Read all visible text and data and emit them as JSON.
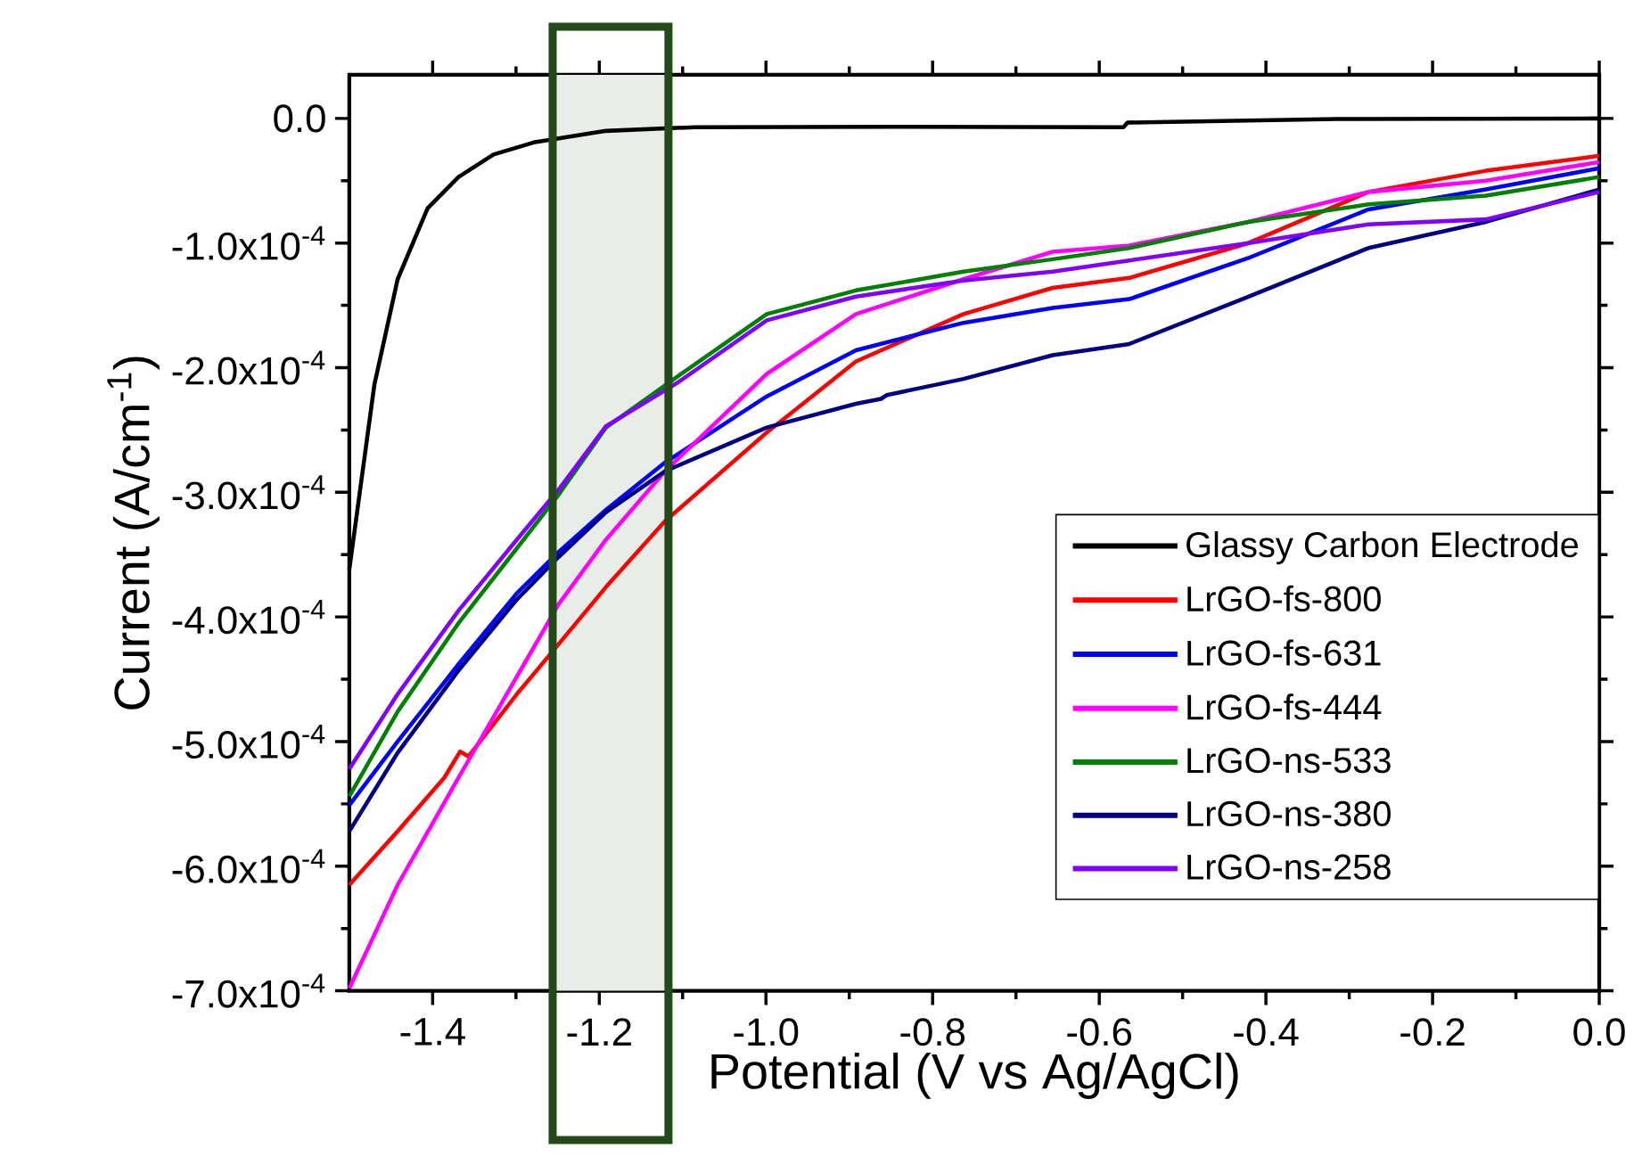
{
  "chart_data": {
    "type": "line",
    "xlabel": "Potential (V vs Ag/AgCl)",
    "ylabel": "Current (A/cm$^{-1}$)",
    "xlim": [
      -1.5,
      0
    ],
    "ylim": [
      -0.0007,
      3.5e-05
    ],
    "xticks": [
      {
        "value": -1.4,
        "label": "-1.4"
      },
      {
        "value": -1.2,
        "label": "-1.2"
      },
      {
        "value": -1.0,
        "label": "-1.0"
      },
      {
        "value": -0.8,
        "label": "-0.8"
      },
      {
        "value": -0.6,
        "label": "-0.6"
      },
      {
        "value": -0.4,
        "label": "-0.4"
      },
      {
        "value": -0.2,
        "label": "-0.2"
      },
      {
        "value": 0,
        "label": "0.0"
      }
    ],
    "yticks": [
      {
        "value": 0,
        "label": "0.0"
      },
      {
        "value": -0.0001,
        "label": "-1.0x10$^{-4}$"
      },
      {
        "value": -0.0002,
        "label": "-2.0x10$^{-4}$"
      },
      {
        "value": -0.0003,
        "label": "-3.0x10$^{-4}$"
      },
      {
        "value": -0.0004,
        "label": "-4.0x10$^{-4}$"
      },
      {
        "value": -0.0005,
        "label": "-5.0x10$^{-4}$"
      },
      {
        "value": -0.0006,
        "label": "-6.0x10$^{-4}$"
      },
      {
        "value": -0.0007,
        "label": "-7.0x10$^{-4}$"
      }
    ],
    "legend": "bottom right",
    "line_style": "solid",
    "bands": [
      {
        "axis": "x",
        "from": -1.256,
        "to": -1.117,
        "color": "#e9ede8"
      }
    ],
    "series": [
      {
        "name": "Glassy Carbon Electrode",
        "color": "#000000",
        "x": [
          -1.5,
          -1.47,
          -1.442,
          -1.406,
          -1.369,
          -1.327,
          -1.277,
          -1.192,
          -1.085,
          -0.849,
          -0.571,
          -0.566,
          -0.314,
          0
        ],
        "values": [
          -0.000362,
          -0.000214,
          -0.000129,
          -7.2e-05,
          -4.7e-05,
          -2.9e-05,
          -1.9e-05,
          -1e-05,
          -7e-06,
          -6.7e-06,
          -7e-06,
          -3.3e-06,
          -5e-07,
          0
        ]
      },
      {
        "name": "LrGO-fs-800",
        "color": "#ff0000",
        "x": [
          -1.5,
          -1.442,
          -1.386,
          -1.367,
          -1.357,
          -1.299,
          -1.249,
          -1.192,
          -1.121,
          -0.999,
          -0.892,
          -0.763,
          -0.656,
          -0.564,
          -0.421,
          -0.277,
          -0.136,
          0
        ],
        "values": [
          -0.000615,
          -0.000572,
          -0.000529,
          -0.000508,
          -0.000512,
          -0.000462,
          -0.000422,
          -0.000376,
          -0.000323,
          -0.000252,
          -0.000195,
          -0.000157,
          -0.000136,
          -0.000128,
          -0.0001,
          -5.9e-05,
          -4.2e-05,
          -3e-05
        ]
      },
      {
        "name": "LrGO-fs-631",
        "color": "#0000ff",
        "x": [
          -1.5,
          -1.442,
          -1.369,
          -1.299,
          -1.249,
          -1.192,
          -1.121,
          -0.999,
          -0.892,
          -0.763,
          -0.656,
          -0.564,
          -0.421,
          -0.277,
          -0.136,
          0
        ],
        "values": [
          -0.000551,
          -0.0005,
          -0.000438,
          -0.000381,
          -0.000348,
          -0.000314,
          -0.000276,
          -0.000223,
          -0.000186,
          -0.000164,
          -0.000152,
          -0.000145,
          -0.000112,
          -7.3e-05,
          -5.7e-05,
          -4e-05
        ]
      },
      {
        "name": "LrGO-fs-444",
        "color": "#ff00ff",
        "x": [
          -1.5,
          -1.442,
          -1.369,
          -1.299,
          -1.249,
          -1.192,
          -1.121,
          -0.999,
          -0.892,
          -0.763,
          -0.656,
          -0.564,
          -0.421,
          -0.277,
          -0.136,
          0
        ],
        "values": [
          -0.000698,
          -0.000615,
          -0.000529,
          -0.000448,
          -0.00039,
          -0.000338,
          -0.000283,
          -0.000205,
          -0.000157,
          -0.000129,
          -0.000107,
          -0.000102,
          -8.3e-05,
          -5.9e-05,
          -5e-05,
          -3.5e-05
        ]
      },
      {
        "name": "LrGO-ns-533",
        "color": "#008000",
        "x": [
          -1.5,
          -1.442,
          -1.369,
          -1.299,
          -1.249,
          -1.192,
          -1.106,
          -0.999,
          -0.892,
          -0.763,
          -0.656,
          -0.564,
          -0.421,
          -0.277,
          -0.136,
          0
        ],
        "values": [
          -0.000544,
          -0.000476,
          -0.000405,
          -0.000345,
          -0.000302,
          -0.000248,
          -0.000207,
          -0.000157,
          -0.000138,
          -0.000123,
          -0.000113,
          -0.000104,
          -8.3e-05,
          -6.9e-05,
          -6.2e-05,
          -4.7e-05
        ]
      },
      {
        "name": "LrGO-ns-380",
        "color": "#000080",
        "x": [
          -1.5,
          -1.442,
          -1.369,
          -1.299,
          -1.249,
          -1.192,
          -1.121,
          -0.999,
          -0.892,
          -0.862,
          -0.855,
          -0.763,
          -0.656,
          -0.564,
          -0.421,
          -0.277,
          -0.136,
          0
        ],
        "values": [
          -0.000572,
          -0.000509,
          -0.000443,
          -0.000386,
          -0.000352,
          -0.000316,
          -0.000283,
          -0.000248,
          -0.000229,
          -0.000225,
          -0.000222,
          -0.000209,
          -0.00019,
          -0.000181,
          -0.000143,
          -0.000104,
          -8.3e-05,
          -5.7e-05
        ]
      },
      {
        "name": "LrGO-ns-258",
        "color": "#8000ff",
        "x": [
          -1.5,
          -1.442,
          -1.369,
          -1.299,
          -1.249,
          -1.192,
          -1.106,
          -0.999,
          -0.892,
          -0.763,
          -0.656,
          -0.564,
          -0.421,
          -0.277,
          -0.136,
          0
        ],
        "values": [
          -0.000522,
          -0.000462,
          -0.000395,
          -0.000338,
          -0.000298,
          -0.000247,
          -0.000212,
          -0.000162,
          -0.000143,
          -0.00013,
          -0.000123,
          -0.000114,
          -0.0001,
          -8.5e-05,
          -8.1e-05,
          -5.9e-05
        ]
      }
    ]
  }
}
